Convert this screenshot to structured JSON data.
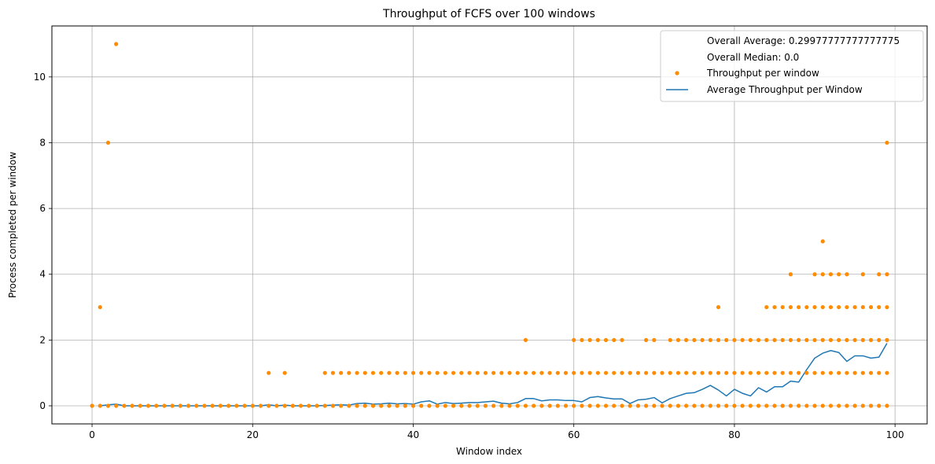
{
  "chart_data": {
    "type": "scatter",
    "title": "Throughput of FCFS over 100 windows",
    "xlabel": "Window index",
    "ylabel": "Process completed per window",
    "xlim": [
      -5,
      104
    ],
    "ylim": [
      -0.55,
      11.55
    ],
    "xticks": [
      0,
      20,
      40,
      60,
      80,
      100
    ],
    "yticks": [
      0,
      2,
      4,
      6,
      8,
      10
    ],
    "grid": true,
    "legend_position": "top-right",
    "legend": [
      "Overall Average: 0.29977777777777775",
      "Overall Median: 0.0",
      "Throughput per window",
      "Average Throughput per Window"
    ],
    "colors": {
      "scatter": "#ff8c00",
      "line": "#1f77b4",
      "grid": "#b0b0b0"
    },
    "series": [
      {
        "name": "Throughput per window",
        "kind": "scatter",
        "point_groups": [
          {
            "y": 0,
            "x_from": 0,
            "x_to": 99
          },
          {
            "y": 1,
            "x": [
              22,
              24
            ],
            "x_from": 29,
            "x_to": 99
          },
          {
            "y": 2,
            "x": [
              54,
              60,
              61,
              62,
              63,
              64,
              65,
              66,
              69,
              70
            ],
            "x_from": 72,
            "x_to": 99
          },
          {
            "y": 3,
            "x": [
              1,
              78
            ],
            "x_from": 84,
            "x_to": 99
          },
          {
            "y": 4,
            "x": [
              87,
              90,
              91,
              92,
              93,
              94,
              96,
              98,
              99
            ]
          },
          {
            "y": 5,
            "x": [
              91
            ]
          },
          {
            "y": 8,
            "x": [
              2,
              99
            ]
          },
          {
            "y": 11,
            "x": [
              3
            ]
          }
        ]
      },
      {
        "name": "Average Throughput per Window",
        "kind": "line",
        "x": [
          1,
          2,
          3,
          4,
          5,
          6,
          7,
          8,
          9,
          10,
          11,
          12,
          13,
          14,
          15,
          16,
          17,
          18,
          19,
          20,
          21,
          22,
          23,
          24,
          25,
          26,
          27,
          28,
          29,
          30,
          31,
          32,
          33,
          34,
          35,
          36,
          37,
          38,
          39,
          40,
          41,
          42,
          43,
          44,
          45,
          46,
          47,
          48,
          49,
          50,
          51,
          52,
          53,
          54,
          55,
          56,
          57,
          58,
          59,
          60,
          61,
          62,
          63,
          64,
          65,
          66,
          67,
          68,
          69,
          70,
          71,
          72,
          73,
          74,
          75,
          76,
          77,
          78,
          79,
          80,
          81,
          82,
          83,
          84,
          85,
          86,
          87,
          88,
          89,
          90,
          91,
          92,
          93,
          94,
          95,
          96,
          97,
          98,
          99
        ],
        "y": [
          0.0,
          0.03,
          0.05,
          0.0,
          0.0,
          0.0,
          0.0,
          0.0,
          0.0,
          0.0,
          0.0,
          0.0,
          0.0,
          0.0,
          0.0,
          0.0,
          0.0,
          0.0,
          0.0,
          0.0,
          0.0,
          0.03,
          0.0,
          0.02,
          0.0,
          0.0,
          0.0,
          0.0,
          0.01,
          0.02,
          0.03,
          0.02,
          0.07,
          0.08,
          0.05,
          0.06,
          0.08,
          0.06,
          0.07,
          0.05,
          0.12,
          0.15,
          0.05,
          0.1,
          0.07,
          0.08,
          0.1,
          0.1,
          0.12,
          0.14,
          0.08,
          0.06,
          0.1,
          0.22,
          0.22,
          0.15,
          0.18,
          0.18,
          0.16,
          0.16,
          0.12,
          0.25,
          0.28,
          0.24,
          0.21,
          0.21,
          0.07,
          0.18,
          0.2,
          0.25,
          0.09,
          0.22,
          0.3,
          0.38,
          0.4,
          0.5,
          0.62,
          0.48,
          0.3,
          0.5,
          0.38,
          0.3,
          0.55,
          0.42,
          0.58,
          0.58,
          0.75,
          0.72,
          1.1,
          1.45,
          1.6,
          1.68,
          1.62,
          1.35,
          1.52,
          1.52,
          1.45,
          1.48,
          1.9
        ]
      }
    ]
  }
}
